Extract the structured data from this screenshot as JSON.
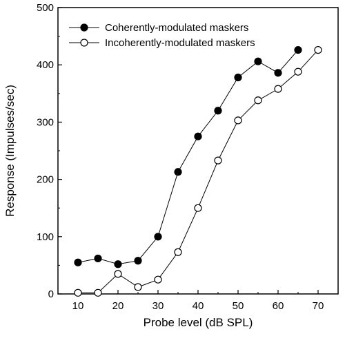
{
  "chart_data": {
    "type": "line",
    "xlabel": "Probe level (dB SPL)",
    "ylabel": "Response (Impulses/sec)",
    "xlim": [
      5,
      75
    ],
    "ylim": [
      0,
      500
    ],
    "xticks": [
      10,
      20,
      30,
      40,
      50,
      60,
      70
    ],
    "yticks": [
      0,
      100,
      200,
      300,
      400,
      500
    ],
    "grid": false,
    "legend_position": "top-left",
    "x": [
      10,
      15,
      20,
      25,
      30,
      35,
      40,
      45,
      50,
      55,
      60,
      65,
      70
    ],
    "series": [
      {
        "name": "Coherently-modulated maskers",
        "marker": "filled-circle",
        "color": "#000000",
        "values": [
          55,
          62,
          52,
          58,
          100,
          213,
          275,
          320,
          378,
          406,
          386,
          426,
          null
        ]
      },
      {
        "name": "Incoherently-modulated maskers",
        "marker": "open-circle",
        "color": "#000000",
        "values": [
          2,
          2,
          35,
          12,
          25,
          73,
          150,
          233,
          303,
          338,
          358,
          388,
          426
        ]
      }
    ]
  }
}
